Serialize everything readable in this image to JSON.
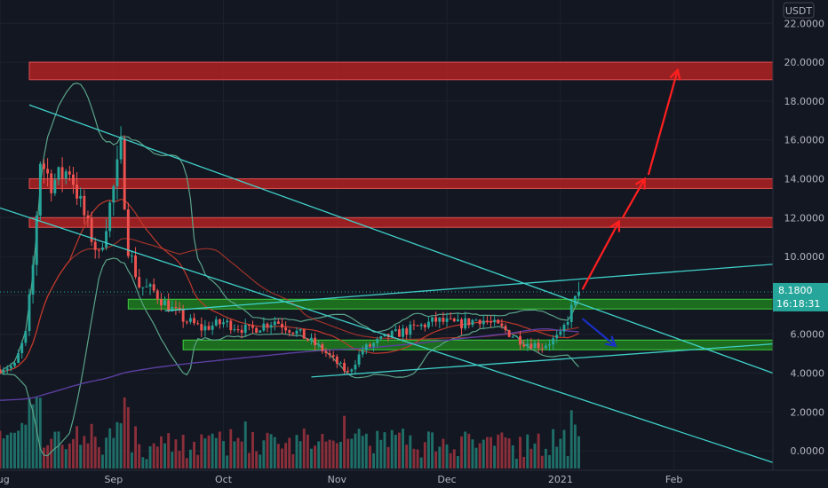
{
  "chart_data": {
    "type": "candlestick",
    "currency": "USDT",
    "y_axis": {
      "ylim": [
        -1.0,
        23.2
      ],
      "ticks": [
        0,
        2,
        4,
        6,
        8,
        10,
        12,
        14,
        16,
        18,
        20,
        22
      ],
      "tick_labels": [
        "0.0000",
        "2.0000",
        "4.0000",
        "6.0000",
        "8.0000",
        "10.0000",
        "12.0000",
        "14.0000",
        "16.0000",
        "18.0000",
        "20.0000",
        "22.0000"
      ]
    },
    "x_axis": {
      "start": "2020-08-01",
      "end": "2021-02-28",
      "tick_dates": [
        "2020-08-01",
        "2020-09-01",
        "2020-10-01",
        "2020-11-01",
        "2020-12-01",
        "2021-01-01",
        "2021-02-01"
      ],
      "tick_labels": [
        "Aug",
        "Sep",
        "Oct",
        "Nov",
        "Dec",
        "2021",
        "Feb"
      ]
    },
    "last_price": {
      "value": 8.18,
      "label": "8.1800",
      "countdown": "16:18:31"
    },
    "last_date": "2021-01-06",
    "trend_close": [
      [
        "2020-08-01",
        4.2
      ],
      [
        "2020-08-05",
        4.4
      ],
      [
        "2020-08-08",
        6.0
      ],
      [
        "2020-08-10",
        9.5
      ],
      [
        "2020-08-12",
        15.0
      ],
      [
        "2020-08-15",
        13.8
      ],
      [
        "2020-08-20",
        14.5
      ],
      [
        "2020-08-25",
        11.5
      ],
      [
        "2020-08-28",
        10.0
      ],
      [
        "2020-09-01",
        13.5
      ],
      [
        "2020-09-03",
        15.5
      ],
      [
        "2020-09-05",
        10.5
      ],
      [
        "2020-09-08",
        8.5
      ],
      [
        "2020-09-12",
        8.2
      ],
      [
        "2020-09-15",
        7.6
      ],
      [
        "2020-09-20",
        6.8
      ],
      [
        "2020-09-25",
        6.3
      ],
      [
        "2020-10-01",
        6.6
      ],
      [
        "2020-10-08",
        6.2
      ],
      [
        "2020-10-15",
        6.7
      ],
      [
        "2020-10-22",
        6.0
      ],
      [
        "2020-10-28",
        5.2
      ],
      [
        "2020-11-04",
        4.0
      ],
      [
        "2020-11-08",
        5.2
      ],
      [
        "2020-11-15",
        5.9
      ],
      [
        "2020-11-22",
        6.3
      ],
      [
        "2020-11-28",
        6.7
      ],
      [
        "2020-12-04",
        6.5
      ],
      [
        "2020-12-10",
        6.8
      ],
      [
        "2020-12-16",
        6.3
      ],
      [
        "2020-12-22",
        5.6
      ],
      [
        "2020-12-27",
        5.4
      ],
      [
        "2021-01-01",
        5.9
      ],
      [
        "2021-01-04",
        7.3
      ],
      [
        "2021-01-06",
        8.18
      ]
    ],
    "zones": [
      {
        "color": "#b22222",
        "border": "#e05050",
        "y1": 19.1,
        "y2": 20.0,
        "x1": "2020-08-09",
        "x2": "2021-02-28"
      },
      {
        "color": "#b22222",
        "border": "#e05050",
        "y1": 13.5,
        "y2": 14.0,
        "x1": "2020-08-09",
        "x2": "2021-02-28"
      },
      {
        "color": "#b22222",
        "border": "#e05050",
        "y1": 11.5,
        "y2": 12.0,
        "x1": "2020-08-09",
        "x2": "2021-02-28"
      },
      {
        "color": "#1e7d1e",
        "border": "#3fcf3f",
        "y1": 7.3,
        "y2": 7.8,
        "x1": "2020-09-05",
        "x2": "2021-02-28"
      },
      {
        "color": "#1e7d1e",
        "border": "#3fcf3f",
        "y1": 5.2,
        "y2": 5.7,
        "x1": "2020-09-20",
        "x2": "2021-02-28"
      }
    ],
    "trendlines": [
      {
        "color": "#3fd0c9",
        "from": [
          "2020-08-09",
          17.8
        ],
        "to": [
          "2021-02-28",
          4.0
        ]
      },
      {
        "color": "#3fd0c9",
        "from": [
          "2020-08-01",
          12.5
        ],
        "to": [
          "2021-02-28",
          -0.6
        ]
      },
      {
        "color": "#3fd0c9",
        "from": [
          "2020-09-15",
          7.2
        ],
        "to": [
          "2021-02-28",
          9.6
        ]
      },
      {
        "color": "#3fd0c9",
        "from": [
          "2020-10-25",
          3.8
        ],
        "to": [
          "2021-02-28",
          5.5
        ]
      }
    ],
    "arrows": [
      {
        "color": "#ff1f1f",
        "from": [
          "2021-01-07",
          8.3
        ],
        "to": [
          "2021-01-17",
          11.8
        ]
      },
      {
        "color": "#ff1f1f",
        "from": [
          "2021-01-18",
          12.0
        ],
        "to": [
          "2021-01-24",
          14.0
        ]
      },
      {
        "color": "#ff1f1f",
        "from": [
          "2021-01-25",
          14.2
        ],
        "to": [
          "2021-02-02",
          19.6
        ]
      },
      {
        "color": "#1a2fc9",
        "from": [
          "2021-01-07",
          6.8
        ],
        "to": [
          "2021-01-16",
          5.4
        ]
      }
    ],
    "colors": {
      "background": "#131722",
      "up": "#26a69a",
      "down": "#ef5350",
      "grid": "#1e222d",
      "bollinger": "#5aa387",
      "ma_red": "#c0392b",
      "ma_purple": "#5b3fa0",
      "volume_up": "#1f6f69",
      "volume_down": "#8a2f3a"
    }
  }
}
